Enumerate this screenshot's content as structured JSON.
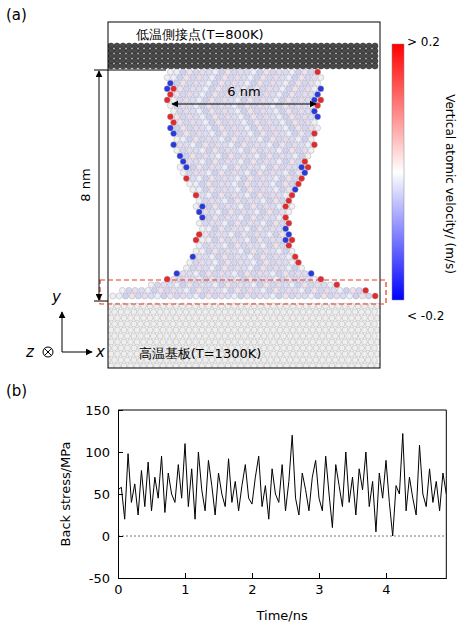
{
  "figure": {
    "panel_a": {
      "letter": "(a)",
      "top_label": "低温側接点(T=800K)",
      "bottom_label": "高温基板(T=1300K)",
      "height_label": "8 nm",
      "width_label": "6 nm",
      "axis_x": "x",
      "axis_y": "y",
      "axis_z": "z",
      "colorbar": {
        "title": "Vertical atomic velocity/ (m/s)",
        "range": [
          -0.2,
          0.2
        ],
        "ticks": [
          {
            "value": 0.2,
            "label": "> 0.2"
          },
          {
            "value": -0.2,
            "label": "< -0.2"
          }
        ],
        "colors": [
          "#0000ff",
          "#ffffff",
          "#ff0000"
        ]
      }
    },
    "panel_b": {
      "letter": "(b)"
    }
  },
  "chart_data": {
    "type": "line",
    "x_label": "Time/ns",
    "y_label": "Back stress/MPa",
    "xlim": [
      0,
      4.9
    ],
    "ylim": [
      -50,
      150
    ],
    "xticks": [
      0,
      1,
      2,
      3,
      4
    ],
    "yticks": [
      -50,
      0,
      50,
      100,
      150
    ],
    "hline": 0,
    "color": "#000000",
    "line_style": "solid",
    "x": [
      0,
      0.05,
      0.1,
      0.15,
      0.2,
      0.25,
      0.3,
      0.35,
      0.4,
      0.45,
      0.5,
      0.55,
      0.6,
      0.65,
      0.7,
      0.75,
      0.8,
      0.85,
      0.9,
      0.95,
      1,
      1.05,
      1.1,
      1.15,
      1.2,
      1.25,
      1.3,
      1.35,
      1.4,
      1.45,
      1.5,
      1.55,
      1.6,
      1.65,
      1.7,
      1.75,
      1.8,
      1.85,
      1.9,
      1.95,
      2,
      2.05,
      2.1,
      2.15,
      2.2,
      2.25,
      2.3,
      2.35,
      2.4,
      2.45,
      2.5,
      2.55,
      2.6,
      2.65,
      2.7,
      2.75,
      2.8,
      2.85,
      2.9,
      2.95,
      3,
      3.05,
      3.1,
      3.15,
      3.2,
      3.25,
      3.3,
      3.35,
      3.4,
      3.45,
      3.5,
      3.55,
      3.6,
      3.65,
      3.7,
      3.75,
      3.8,
      3.85,
      3.9,
      3.95,
      4,
      4.05,
      4.1,
      4.15,
      4.2,
      4.25,
      4.3,
      4.35,
      4.4,
      4.45,
      4.5,
      4.55,
      4.6,
      4.65,
      4.7,
      4.75,
      4.8,
      4.85,
      4.9
    ],
    "values": [
      55,
      58,
      20,
      98,
      40,
      62,
      25,
      78,
      35,
      88,
      30,
      70,
      45,
      95,
      28,
      75,
      50,
      40,
      85,
      45,
      110,
      35,
      80,
      20,
      100,
      55,
      30,
      90,
      60,
      25,
      75,
      50,
      35,
      92,
      40,
      65,
      30,
      60,
      85,
      45,
      38,
      70,
      95,
      35,
      60,
      20,
      80,
      50,
      40,
      85,
      30,
      65,
      120,
      45,
      25,
      75,
      55,
      30,
      70,
      90,
      45,
      30,
      95,
      50,
      10,
      85,
      60,
      35,
      100,
      40,
      70,
      25,
      80,
      55,
      100,
      35,
      65,
      5,
      75,
      45,
      90,
      40,
      0,
      60,
      50,
      122,
      30,
      70,
      45,
      25,
      108,
      50,
      35,
      80,
      40,
      65,
      30,
      75,
      50
    ]
  }
}
